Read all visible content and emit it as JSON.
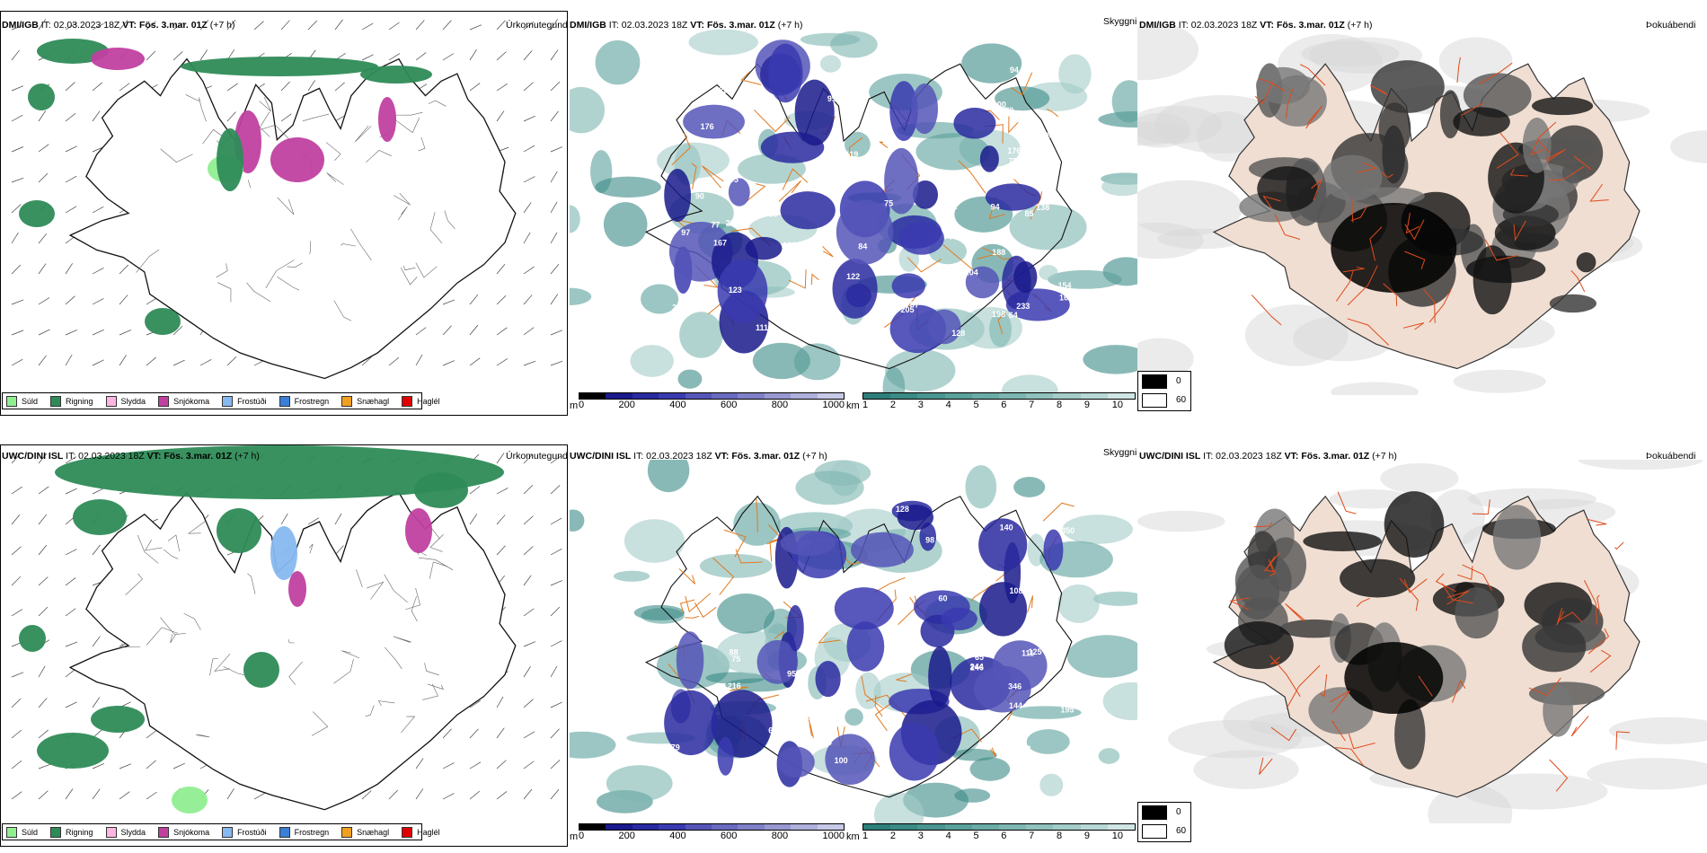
{
  "top": {
    "precip": {
      "model": "DMI/IGB",
      "it": "IT: 02.03.2023 18Z",
      "vt_label": "VT:",
      "vt_value": "Fös. 3.mar. 01Z",
      "lead": "(+7 h)",
      "field": "Úrkomutegund"
    },
    "cloud": {
      "model": "DMI/IGB",
      "it": "IT: 02.03.2023 18Z",
      "vt_label": "VT:",
      "vt_value": "Fös. 3.mar. 01Z",
      "lead": "(+7 h)",
      "field": "Skyggni"
    },
    "fog": {
      "model": "DMI/IGB",
      "it": "IT: 02.03.2023 18Z",
      "vt_label": "VT:",
      "vt_value": "Fös. 3.mar. 01Z",
      "lead": "(+7 h)",
      "field": "Þokuábendi"
    }
  },
  "bottom": {
    "precip": {
      "model": "UWC/DINI ISL",
      "it": "IT: 02.03.2023 18Z",
      "vt_label": "VT:",
      "vt_value": "Fös. 3.mar. 01Z",
      "lead": "(+7 h)",
      "field": "Úrkomutegund"
    },
    "cloud": {
      "model": "UWC/DINI ISL",
      "it": "IT: 02.03.2023 18Z",
      "vt_label": "VT:",
      "vt_value": "Fös. 3.mar. 01Z",
      "lead": "(+7 h)",
      "field": "Skyggni"
    },
    "fog": {
      "model": "UWC/DINI ISL",
      "it": "IT: 02.03.2023 18Z",
      "vt_label": "VT:",
      "vt_value": "Fös. 3.mar. 01Z",
      "lead": "(+7 h)",
      "field": "Þokuábendi"
    }
  },
  "precip_legend": [
    {
      "label": "Súld",
      "color": "#90ee90"
    },
    {
      "label": "Rigning",
      "color": "#2e8b57"
    },
    {
      "label": "Slydda",
      "color": "#ffb6e1"
    },
    {
      "label": "Snjókoma",
      "color": "#c040a0"
    },
    {
      "label": "Frostúði",
      "color": "#87b8ef"
    },
    {
      "label": "Frostregn",
      "color": "#3a7fd5"
    },
    {
      "label": "Snæhagl",
      "color": "#f0a020"
    },
    {
      "label": "Haglél",
      "color": "#e00000"
    }
  ],
  "cloud_base_bar": {
    "unit": "m",
    "ticks": [
      "0",
      "200",
      "400",
      "600",
      "800",
      "1000"
    ],
    "colors": [
      "#000000",
      "#1a1a8c",
      "#2a2aa0",
      "#3a3ab0",
      "#5555b8",
      "#6a6ac0",
      "#8080c8",
      "#9898d0",
      "#b0b0dc",
      "#c8c8e8"
    ]
  },
  "visibility_bar": {
    "unit": "km",
    "ticks": [
      "1",
      "2",
      "3",
      "4",
      "5",
      "6",
      "7",
      "8",
      "9",
      "10"
    ],
    "colors": [
      "#2e7f7a",
      "#3a8a85",
      "#4a9590",
      "#5aa09b",
      "#6babA6",
      "#7db6b1",
      "#90c1bd",
      "#a4ccc8",
      "#b8d8d5",
      "#d0e6e4"
    ]
  },
  "fog_legend": [
    {
      "label": "0",
      "color": "#000000"
    },
    {
      "label": "60",
      "color": "#ffffff"
    }
  ],
  "top_cloud_labels": [
    "95",
    "188",
    "119",
    "123",
    "84",
    "200",
    "176",
    "122",
    "94",
    "95",
    "89",
    "64",
    "205",
    "253",
    "214",
    "111",
    "233",
    "100",
    "84",
    "75",
    "85",
    "52",
    "120",
    "87",
    "138",
    "90",
    "98",
    "137",
    "97",
    "125",
    "94",
    "75",
    "77",
    "74",
    "70",
    "70",
    "69",
    "60",
    "104",
    "169",
    "97",
    "151",
    "277",
    "105",
    "128",
    "154",
    "167",
    "176",
    "198"
  ],
  "bottom_cloud_labels": [
    "350",
    "216",
    "246",
    "244",
    "346",
    "76",
    "83",
    "79",
    "61",
    "71",
    "60",
    "108",
    "88",
    "100",
    "111",
    "125",
    "140",
    "195",
    "128",
    "144",
    "81",
    "75",
    "98",
    "69",
    "65",
    "89",
    "95",
    "36"
  ]
}
